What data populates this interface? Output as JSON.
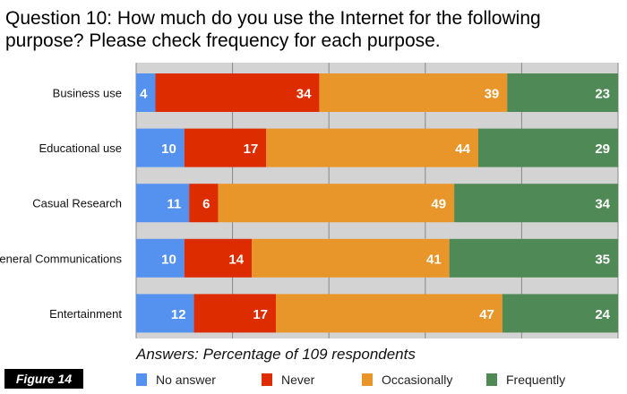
{
  "chart_data": {
    "type": "bar",
    "orientation": "horizontal",
    "stacked": true,
    "title": "Question 10: How much do you use the Internet for the following purpose? Please check frequency for each purpose.",
    "xlabel": "Answers: Percentage of 109 respondents",
    "xlim": [
      0,
      100
    ],
    "grid": true,
    "legend_position": "bottom",
    "categories": [
      "Business use",
      "Educational use",
      "Casual Research",
      "General Communications",
      "Entertainment"
    ],
    "series": [
      {
        "name": "No answer",
        "color": "#5592f0",
        "values": [
          4,
          10,
          11,
          10,
          12
        ]
      },
      {
        "name": "Never",
        "color": "#dd2c00",
        "values": [
          34,
          17,
          6,
          14,
          17
        ]
      },
      {
        "name": "Occasionally",
        "color": "#e8952a",
        "values": [
          39,
          44,
          49,
          41,
          47
        ]
      },
      {
        "name": "Frequently",
        "color": "#4f8a56",
        "values": [
          23,
          29,
          34,
          35,
          24
        ]
      }
    ]
  },
  "figure_label": "Figure 14"
}
